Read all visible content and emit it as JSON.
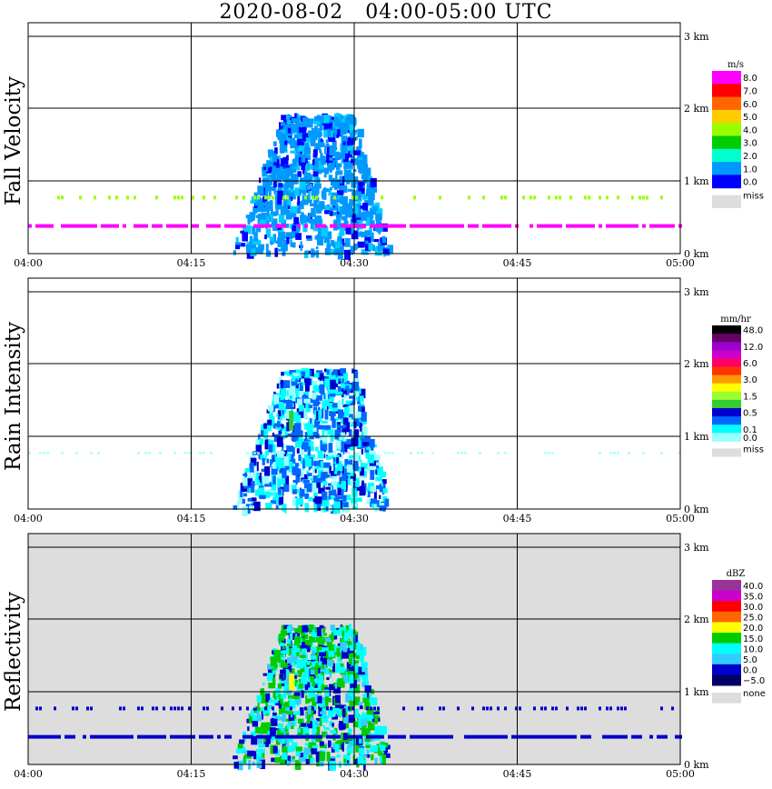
{
  "title": "2020-08-02   04:00-05:00 UTC",
  "x_ticks": [
    "04:00",
    "04:15",
    "04:30",
    "04:45",
    "05:00"
  ],
  "y_ticks": [
    "0 km",
    "1 km",
    "2 km",
    "3 km"
  ],
  "chart_data": [
    {
      "type": "heatmap",
      "ylabel": "Fall Velocity",
      "x_range": [
        "04:00",
        "05:00"
      ],
      "y_range_km": [
        0,
        3
      ],
      "background": "#ffffff",
      "colorbar": {
        "unit": "m/s",
        "levels": [
          {
            "label": "8.0",
            "color": "#ff00ff"
          },
          {
            "label": "7.0",
            "color": "#ff0000"
          },
          {
            "label": "6.0",
            "color": "#ff6600"
          },
          {
            "label": "5.0",
            "color": "#ffcc00"
          },
          {
            "label": "4.0",
            "color": "#99ff00"
          },
          {
            "label": "3.0",
            "color": "#00cc00"
          },
          {
            "label": "2.0",
            "color": "#00ffcc"
          },
          {
            "label": "1.0",
            "color": "#0099ff"
          },
          {
            "label": "0.0",
            "color": "#0000ff"
          }
        ],
        "missing": {
          "label": "miss",
          "color": "#dddddd"
        }
      }
    },
    {
      "type": "heatmap",
      "ylabel": "Rain Intensity",
      "x_range": [
        "04:00",
        "05:00"
      ],
      "y_range_km": [
        0,
        3
      ],
      "background": "#ffffff",
      "colorbar": {
        "unit": "mm/hr",
        "levels": [
          {
            "label": "48.0",
            "color": "#000000"
          },
          {
            "label": "",
            "color": "#660066"
          },
          {
            "label": "12.0",
            "color": "#9900cc"
          },
          {
            "label": "",
            "color": "#cc00cc"
          },
          {
            "label": "6.0",
            "color": "#ff0066"
          },
          {
            "label": "",
            "color": "#ff3300"
          },
          {
            "label": "3.0",
            "color": "#ff9900"
          },
          {
            "label": "",
            "color": "#ffff00"
          },
          {
            "label": "1.5",
            "color": "#99ff33"
          },
          {
            "label": "",
            "color": "#33cc33"
          },
          {
            "label": "0.5",
            "color": "#0000cc"
          },
          {
            "label": "",
            "color": "#0066ff"
          },
          {
            "label": "0.1",
            "color": "#00ffff"
          },
          {
            "label": "0.0",
            "color": "#99ffff"
          }
        ],
        "missing": {
          "label": "miss",
          "color": "#dddddd"
        }
      }
    },
    {
      "type": "heatmap",
      "ylabel": "Reflectivity",
      "x_range": [
        "04:00",
        "05:00"
      ],
      "y_range_km": [
        0,
        3
      ],
      "background": "#dddddd",
      "colorbar": {
        "unit": "dBZ",
        "levels": [
          {
            "label": "40.0",
            "color": "#993399"
          },
          {
            "label": "35.0",
            "color": "#cc00cc"
          },
          {
            "label": "30.0",
            "color": "#ff0000"
          },
          {
            "label": "25.0",
            "color": "#ff6600"
          },
          {
            "label": "20.0",
            "color": "#ffff00"
          },
          {
            "label": "15.0",
            "color": "#00cc00"
          },
          {
            "label": "10.0",
            "color": "#00ffff"
          },
          {
            "label": "5.0",
            "color": "#33ccff"
          },
          {
            "label": "0.0",
            "color": "#0000cc"
          },
          {
            "label": "−5.0",
            "color": "#000066"
          }
        ],
        "missing": {
          "label": "none",
          "color": "#dddddd"
        }
      }
    }
  ]
}
